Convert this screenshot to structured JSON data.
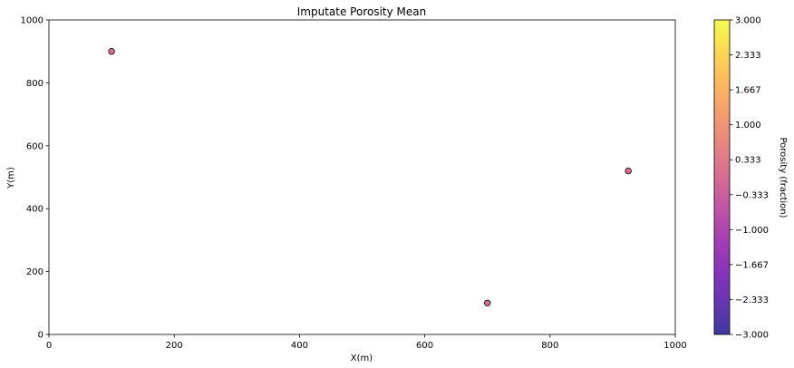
{
  "chart_data": {
    "type": "scatter",
    "title": "Imputate Porosity Mean",
    "xlabel": "X(m)",
    "ylabel": "Y(m)",
    "xlim": [
      0,
      1000
    ],
    "ylim": [
      0,
      1000
    ],
    "x_ticks": [
      "0",
      "200",
      "400",
      "600",
      "800",
      "1000"
    ],
    "y_ticks": [
      "0",
      "200",
      "400",
      "600",
      "800",
      "1000"
    ],
    "grid": false,
    "points": [
      {
        "x": 100,
        "y": 900,
        "porosity": 0.1
      },
      {
        "x": 925,
        "y": 520,
        "porosity": 0.1
      },
      {
        "x": 700,
        "y": 100,
        "porosity": 0.1
      }
    ],
    "colorbar": {
      "label": "Porosity (fraction)",
      "colormap": "plasma",
      "range": [
        -3.0,
        3.0
      ],
      "alpha": 0.8,
      "tick_labels": [
        "3.000",
        "2.333",
        "1.667",
        "1.000",
        "0.333",
        "−0.333",
        "−1.000",
        "−1.667",
        "−2.333",
        "−3.000"
      ],
      "tick_values": [
        3.0,
        2.333,
        1.667,
        1.0,
        0.333,
        -0.333,
        -1.0,
        -1.667,
        -2.333,
        -3.0
      ]
    },
    "marker_edge_color": "#000000"
  }
}
